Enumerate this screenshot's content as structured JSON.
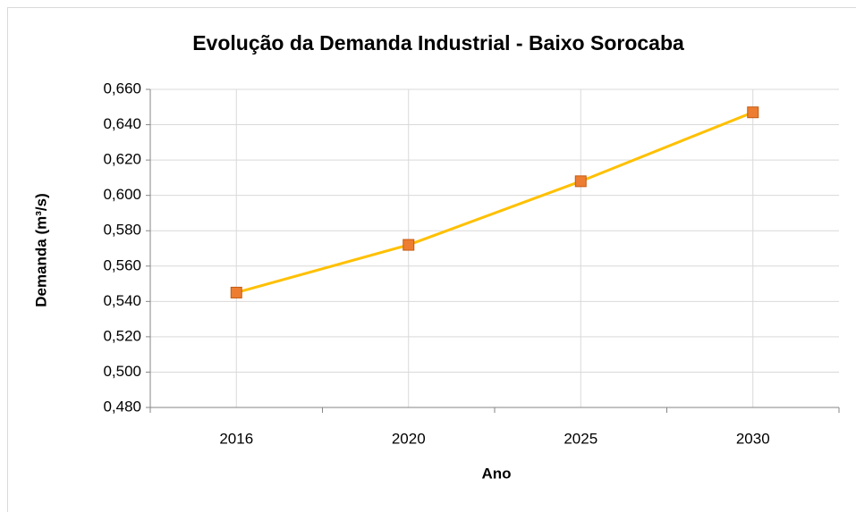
{
  "chart_data": {
    "type": "line",
    "title": "Evolução da  Demanda  Industrial - Baixo Sorocaba",
    "x_label": "Ano",
    "y_label": "Demanda (m³/s)",
    "categories": [
      "2016",
      "2020",
      "2025",
      "2030"
    ],
    "series": [
      {
        "name": "Demanda",
        "color": "#FFC000",
        "marker_color": "#ED7D31",
        "values": [
          0.545,
          0.572,
          0.608,
          0.647
        ]
      }
    ],
    "ylim": [
      0.48,
      0.66
    ],
    "yticks": [
      {
        "value": 0.48,
        "label": "0,480"
      },
      {
        "value": 0.5,
        "label": "0,500"
      },
      {
        "value": 0.52,
        "label": "0,520"
      },
      {
        "value": 0.54,
        "label": "0,540"
      },
      {
        "value": 0.56,
        "label": "0,560"
      },
      {
        "value": 0.58,
        "label": "0,580"
      },
      {
        "value": 0.6,
        "label": "0,600"
      },
      {
        "value": 0.62,
        "label": "0,620"
      },
      {
        "value": 0.64,
        "label": "0,640"
      },
      {
        "value": 0.66,
        "label": "0,660"
      }
    ],
    "grid": true
  }
}
